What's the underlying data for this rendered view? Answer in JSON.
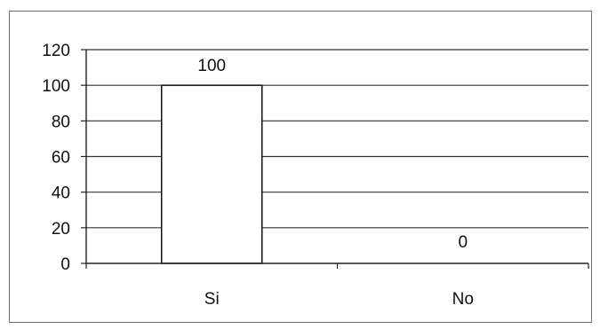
{
  "chart_data": {
    "type": "bar",
    "categories": [
      "Si",
      "No"
    ],
    "values": [
      100,
      0
    ],
    "data_labels": [
      "100",
      "0"
    ],
    "ylim": [
      0,
      120
    ],
    "yticks": [
      0,
      20,
      40,
      60,
      80,
      100,
      120
    ],
    "ytick_labels": [
      "0",
      "20",
      "40",
      "60",
      "80",
      "100",
      "120"
    ],
    "grid": true,
    "legend": "none"
  }
}
